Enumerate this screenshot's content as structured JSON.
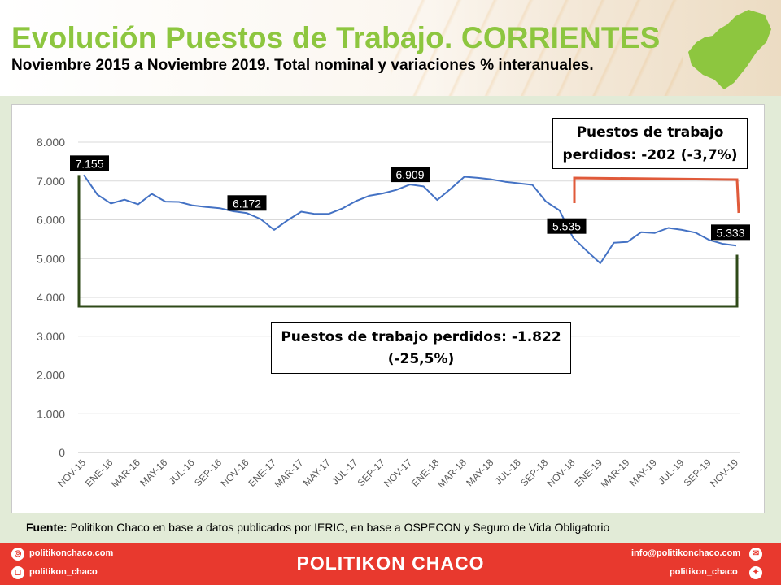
{
  "title": "Evolución Puestos de Trabajo. CORRIENTES",
  "subtitle": "Noviembre 2015 a Noviembre 2019. Total nominal y variaciones % interanuales.",
  "colors": {
    "accent_green": "#8dc63f",
    "line_blue": "#4472c4",
    "bracket_dark_green": "#2f4a18",
    "bracket_red": "#e05a3a",
    "footer_red": "#e8392e"
  },
  "chart_data": {
    "type": "line",
    "x": [
      "NOV-15",
      "DIC-15",
      "ENE-16",
      "FEB-16",
      "MAR-16",
      "ABR-16",
      "MAY-16",
      "JUN-16",
      "JUL-16",
      "AGO-16",
      "SEP-16",
      "OCT-16",
      "NOV-16",
      "DIC-16",
      "ENE-17",
      "FEB-17",
      "MAR-17",
      "ABR-17",
      "MAY-17",
      "JUN-17",
      "JUL-17",
      "AGO-17",
      "SEP-17",
      "OCT-17",
      "NOV-17",
      "DIC-17",
      "ENE-18",
      "FEB-18",
      "MAR-18",
      "ABR-18",
      "MAY-18",
      "JUN-18",
      "JUL-18",
      "AGO-18",
      "SEP-18",
      "OCT-18",
      "NOV-18",
      "DIC-18",
      "ENE-19",
      "FEB-19",
      "MAR-19",
      "ABR-19",
      "MAY-19",
      "JUN-19",
      "JUL-19",
      "AGO-19",
      "SEP-19",
      "OCT-19",
      "NOV-19"
    ],
    "tick_labels": [
      "NOV-15",
      "ENE-16",
      "MAR-16",
      "MAY-16",
      "JUL-16",
      "SEP-16",
      "NOV-16",
      "ENE-17",
      "MAR-17",
      "MAY-17",
      "JUL-17",
      "SEP-17",
      "NOV-17",
      "ENE-18",
      "MAR-18",
      "MAY-18",
      "JUL-18",
      "SEP-18",
      "NOV-18",
      "ENE-19",
      "MAR-19",
      "MAY-19",
      "JUL-19",
      "SEP-19",
      "NOV-19"
    ],
    "values": [
      7155,
      6650,
      6420,
      6520,
      6400,
      6670,
      6470,
      6460,
      6370,
      6330,
      6300,
      6220,
      6172,
      6020,
      5740,
      5990,
      6210,
      6150,
      6150,
      6290,
      6480,
      6620,
      6680,
      6770,
      6909,
      6860,
      6510,
      6800,
      7110,
      7080,
      7040,
      6980,
      6940,
      6900,
      6470,
      6240,
      5535,
      5200,
      4880,
      5410,
      5430,
      5680,
      5660,
      5790,
      5740,
      5670,
      5480,
      5380,
      5333
    ],
    "y_ticks": [
      "0",
      "1.000",
      "2.000",
      "3.000",
      "4.000",
      "5.000",
      "6.000",
      "7.000",
      "8.000"
    ],
    "ylim": [
      0,
      8000
    ],
    "grid": true,
    "data_labels": [
      {
        "index": 0,
        "text": "7.155"
      },
      {
        "index": 12,
        "text": "6.172"
      },
      {
        "index": 24,
        "text": "6.909"
      },
      {
        "index": 36,
        "text": "5.535"
      },
      {
        "index": 48,
        "text": "5.333"
      }
    ]
  },
  "annotations": {
    "total_loss": "Puestos de trabajo perdidos: -1.822 (-25,5%)",
    "recent_loss": "Puestos de trabajo perdidos: -202 (-3,7%)"
  },
  "source": {
    "label": "Fuente:",
    "text": "Politikon Chaco en base a datos publicados por IERIC,  en base a OSPECON y Seguro de Vida Obligatorio"
  },
  "footer": {
    "brand": "POLITIKON CHACO",
    "website": "politikonchaco.com",
    "instagram": "politikon_chaco",
    "email": "info@politikonchaco.com",
    "twitter": "politikon_chaco"
  }
}
